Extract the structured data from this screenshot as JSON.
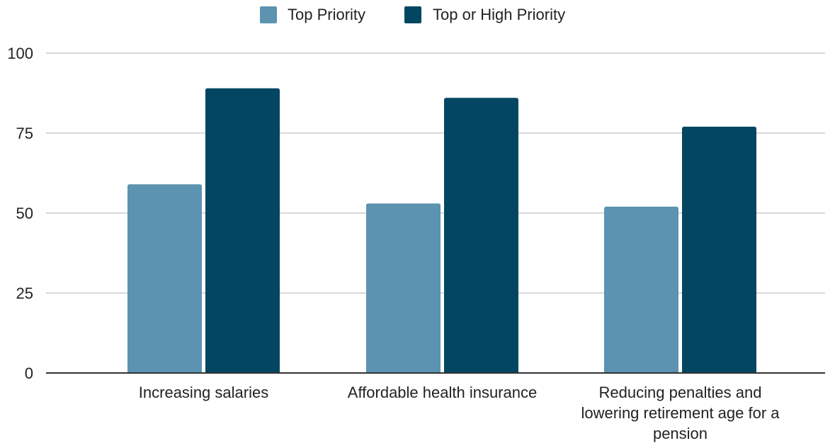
{
  "chart_data": {
    "type": "bar",
    "title": "",
    "xlabel": "",
    "ylabel": "",
    "ylim": [
      0,
      100
    ],
    "yticks": [
      0,
      25,
      50,
      75,
      100
    ],
    "grid": true,
    "legend_position": "top-center",
    "categories": [
      "Increasing salaries",
      "Affordable health insurance",
      "Reducing penalties and lowering retirement age for a pension"
    ],
    "category_label_lines": [
      [
        "Increasing salaries"
      ],
      [
        "Affordable health insurance"
      ],
      [
        "Reducing penalties and",
        "lowering retirement age for a",
        "pension"
      ]
    ],
    "series": [
      {
        "name": "Top Priority",
        "color": "#5b93b0",
        "values": [
          59,
          53,
          52
        ]
      },
      {
        "name": "Top or High Priority",
        "color": "#024661",
        "values": [
          89,
          86,
          77
        ]
      }
    ],
    "gridline_color": "#cccccc",
    "axis_color": "#333333"
  }
}
